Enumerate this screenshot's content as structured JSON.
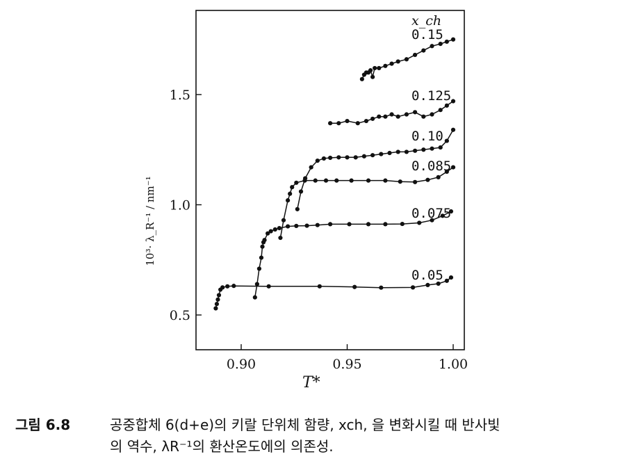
{
  "chart_data": {
    "type": "line",
    "xlabel": "T*",
    "ylabel": "10³· λ_R⁻¹ / nm⁻¹",
    "legend_title": "x_ch",
    "xlim": [
      0.883,
      1.0
    ],
    "ylim": [
      0.45,
      1.83
    ],
    "x_ticks": [
      0.9,
      0.95,
      1.0
    ],
    "x_tick_labels": [
      "0.90",
      "0.95",
      "1.00"
    ],
    "y_ticks": [
      0.5,
      1.0,
      1.5
    ],
    "y_tick_labels": [
      "0.5",
      "1.0",
      "1.5"
    ],
    "grid": false,
    "series": [
      {
        "name": "0.05",
        "x": [
          0.888,
          0.8885,
          0.889,
          0.8895,
          0.8902,
          0.8912,
          0.8935,
          0.8965,
          0.913,
          0.937,
          0.9535,
          0.966,
          0.981,
          0.988,
          0.993,
          0.997,
          0.999
        ],
        "y": [
          0.53,
          0.55,
          0.57,
          0.59,
          0.615,
          0.625,
          0.63,
          0.632,
          0.63,
          0.63,
          0.627,
          0.624,
          0.625,
          0.636,
          0.642,
          0.655,
          0.67
        ]
      },
      {
        "name": "0.075",
        "x": [
          0.9065,
          0.9075,
          0.9085,
          0.9095,
          0.91,
          0.9105,
          0.911,
          0.9125,
          0.914,
          0.916,
          0.918,
          0.922,
          0.926,
          0.931,
          0.936,
          0.942,
          0.951,
          0.96,
          0.968,
          0.976,
          0.984,
          0.99,
          0.995,
          0.999
        ],
        "y": [
          0.58,
          0.64,
          0.71,
          0.76,
          0.81,
          0.83,
          0.84,
          0.87,
          0.88,
          0.888,
          0.894,
          0.902,
          0.904,
          0.905,
          0.908,
          0.912,
          0.912,
          0.912,
          0.912,
          0.913,
          0.918,
          0.93,
          0.95,
          0.97
        ]
      },
      {
        "name": "0.085",
        "x": [
          0.9185,
          0.92,
          0.922,
          0.923,
          0.924,
          0.926,
          0.93,
          0.935,
          0.94,
          0.945,
          0.952,
          0.96,
          0.968,
          0.975,
          0.982,
          0.988,
          0.993,
          0.997,
          1.0
        ],
        "y": [
          0.85,
          0.93,
          1.02,
          1.05,
          1.08,
          1.1,
          1.11,
          1.11,
          1.11,
          1.11,
          1.11,
          1.11,
          1.11,
          1.105,
          1.103,
          1.113,
          1.125,
          1.15,
          1.17
        ]
      },
      {
        "name": "0.10",
        "x": [
          0.9265,
          0.9282,
          0.9302,
          0.933,
          0.936,
          0.939,
          0.942,
          0.946,
          0.95,
          0.954,
          0.958,
          0.962,
          0.966,
          0.97,
          0.974,
          0.978,
          0.982,
          0.986,
          0.99,
          0.994,
          0.997,
          1.0
        ],
        "y": [
          0.98,
          1.06,
          1.12,
          1.17,
          1.2,
          1.21,
          1.213,
          1.215,
          1.215,
          1.215,
          1.22,
          1.225,
          1.23,
          1.235,
          1.24,
          1.24,
          1.245,
          1.25,
          1.255,
          1.26,
          1.29,
          1.34
        ]
      },
      {
        "name": "0.125",
        "x": [
          0.942,
          0.946,
          0.95,
          0.955,
          0.959,
          0.962,
          0.965,
          0.968,
          0.971,
          0.974,
          0.978,
          0.982,
          0.986,
          0.99,
          0.994,
          0.997,
          1.0
        ],
        "y": [
          1.37,
          1.37,
          1.38,
          1.37,
          1.38,
          1.39,
          1.4,
          1.4,
          1.41,
          1.4,
          1.41,
          1.42,
          1.4,
          1.41,
          1.43,
          1.45,
          1.47
        ]
      },
      {
        "name": "0.15",
        "x": [
          0.957,
          0.958,
          0.959,
          0.96,
          0.961,
          0.962,
          0.963,
          0.965,
          0.968,
          0.971,
          0.974,
          0.978,
          0.982,
          0.986,
          0.99,
          0.994,
          0.997,
          1.0
        ],
        "y": [
          1.57,
          1.59,
          1.6,
          1.6,
          1.61,
          1.58,
          1.62,
          1.62,
          1.63,
          1.64,
          1.65,
          1.66,
          1.68,
          1.7,
          1.72,
          1.73,
          1.74,
          1.75
        ]
      }
    ],
    "series_labels": [
      "0.15",
      "0.125",
      "0.10",
      "0.085",
      "0.075",
      "0.05"
    ]
  },
  "caption": {
    "number": "그림 6.8",
    "line1": "공중합체 6(d+e)의 키랄 단위체 함량, xch, 을 변화시킬 때 반사빛",
    "line2": "의 역수, λR⁻¹의 환산온도에의 의존성."
  }
}
